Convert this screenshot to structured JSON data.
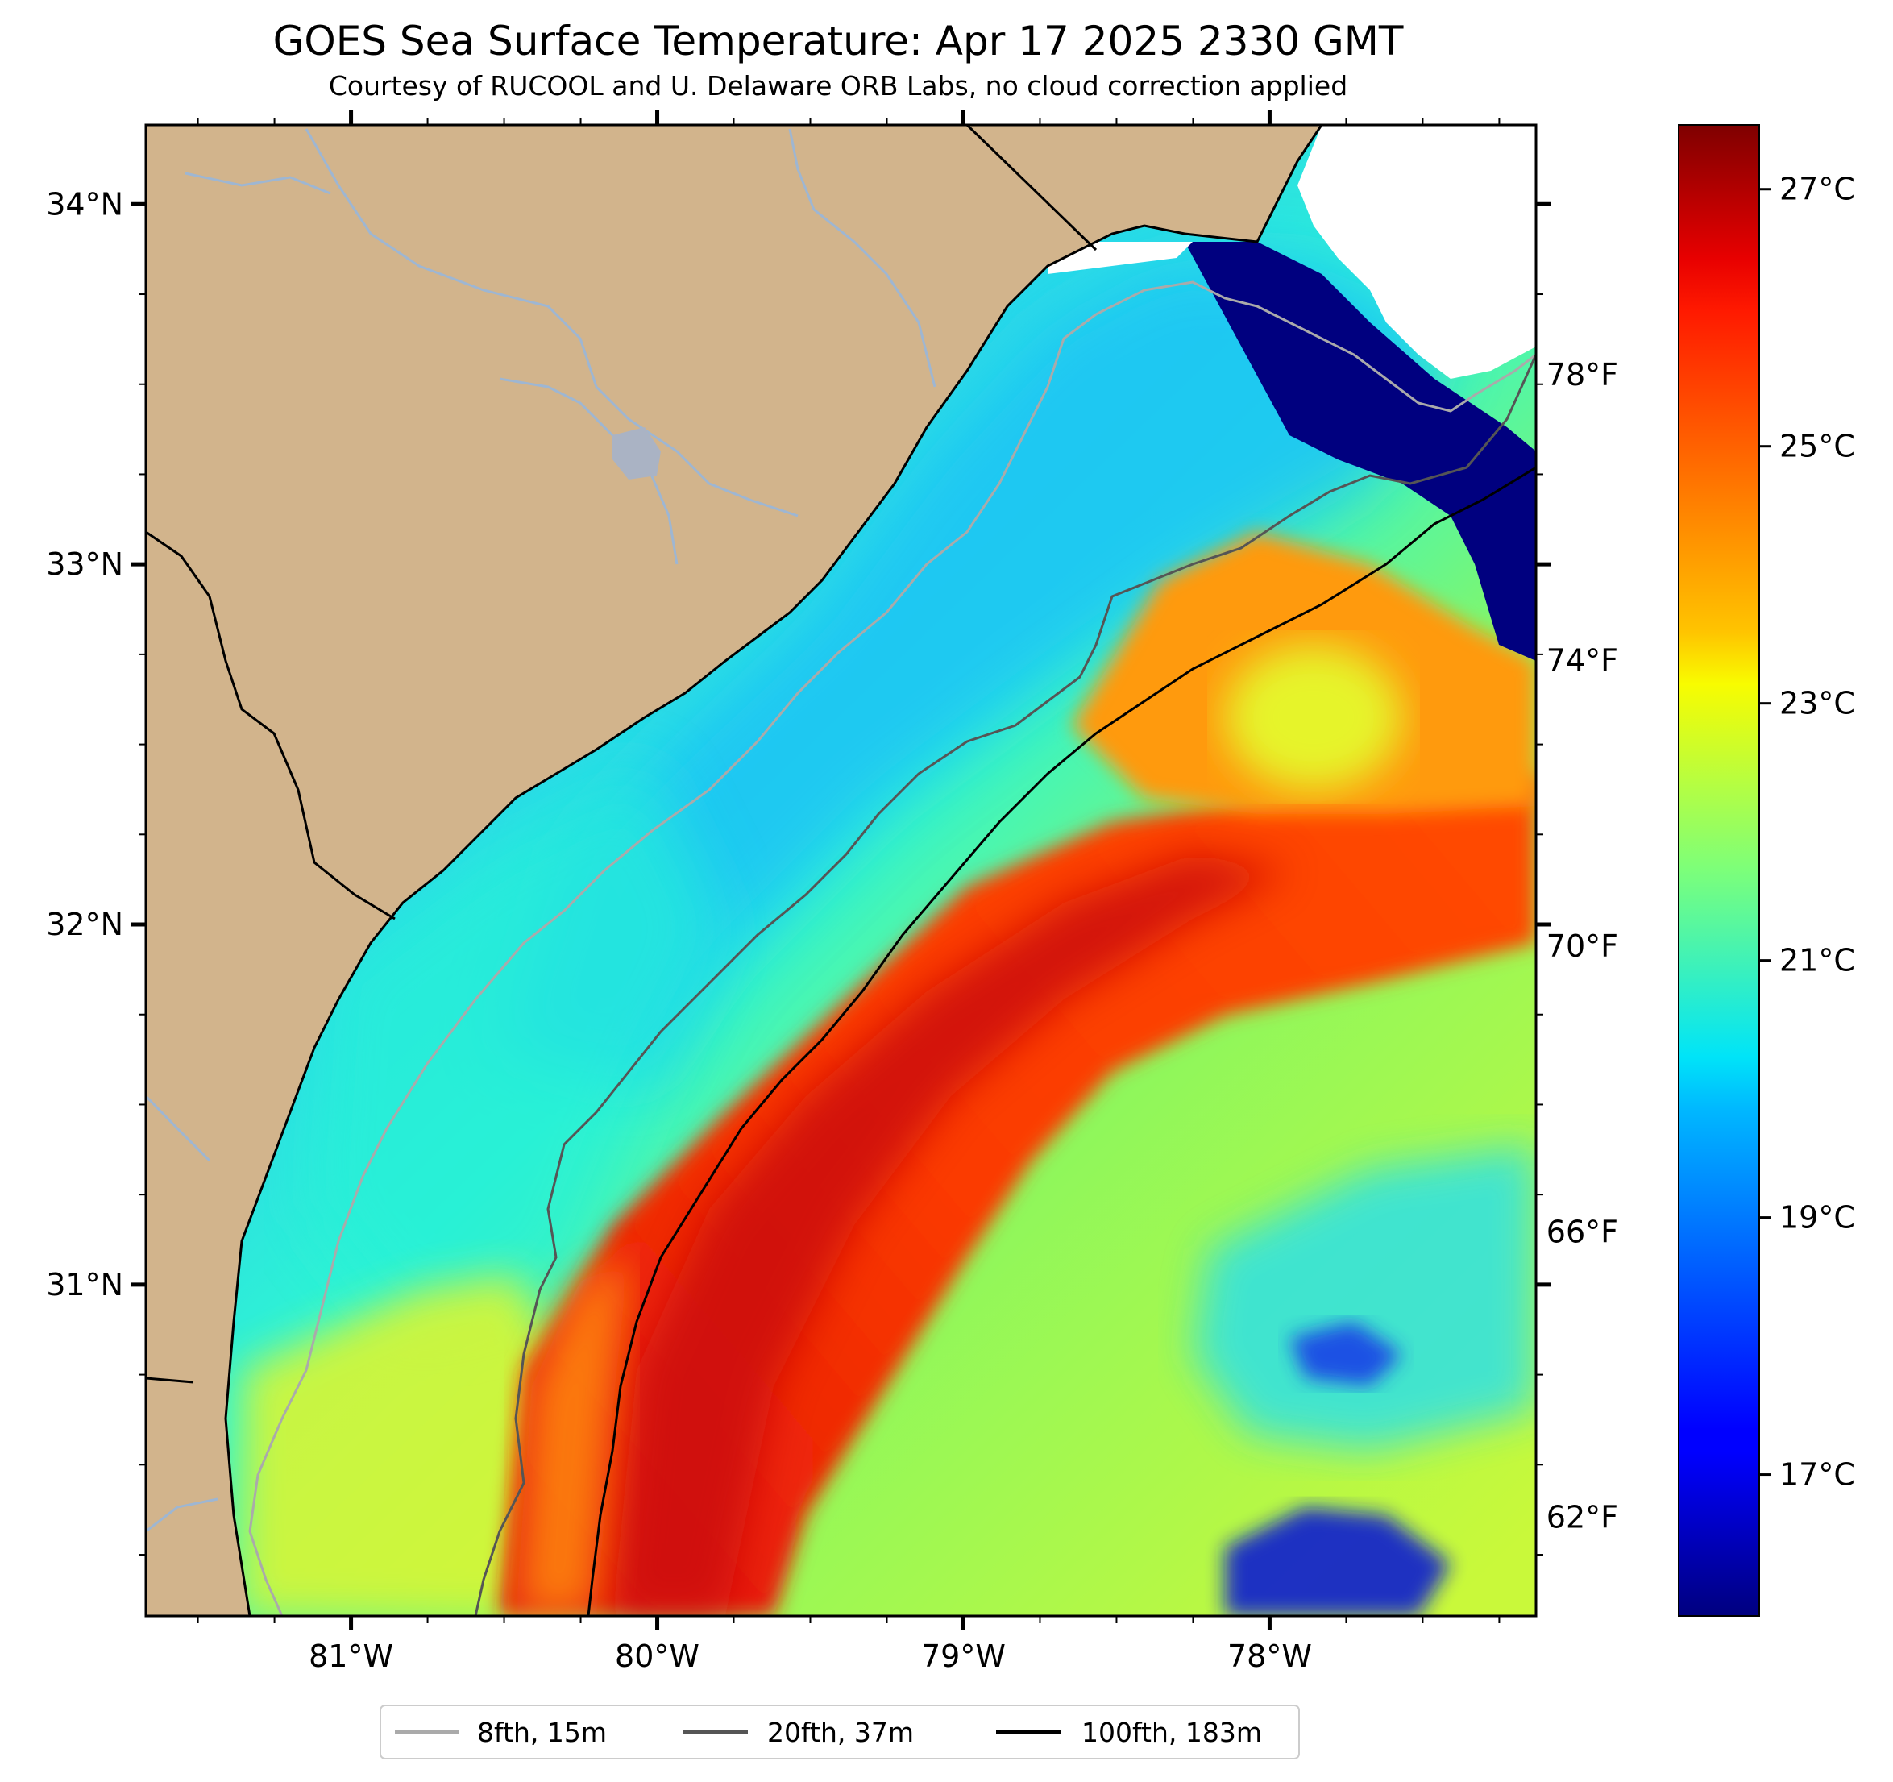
{
  "title": "GOES Sea Surface Temperature: Apr 17 2025 2330 GMT",
  "subtitle": "Courtesy of RUCOOL and U. Delaware ORB Labs, no cloud correction applied",
  "map": {
    "lon_range": [
      -81.67,
      -77.13
    ],
    "lat_range": [
      30.08,
      34.22
    ],
    "land_color": "#d2b48c",
    "river_color": "#9eb6d2",
    "lat_ticks": [
      {
        "value": 34,
        "label": "34°N"
      },
      {
        "value": 33,
        "label": "33°N"
      },
      {
        "value": 32,
        "label": "32°N"
      },
      {
        "value": 31,
        "label": "31°N"
      }
    ],
    "lon_ticks": [
      {
        "value": -81,
        "label": "81°W"
      },
      {
        "value": -80,
        "label": "80°W"
      },
      {
        "value": -79,
        "label": "79°W"
      },
      {
        "value": -78,
        "label": "78°W"
      }
    ]
  },
  "colorbar": {
    "colormap": "jet",
    "celsius_range": [
      15.9,
      27.5
    ],
    "celsius_ticks": [
      {
        "value": 27,
        "label": "27°C"
      },
      {
        "value": 25,
        "label": "25°C"
      },
      {
        "value": 23,
        "label": "23°C"
      },
      {
        "value": 21,
        "label": "21°C"
      },
      {
        "value": 19,
        "label": "19°C"
      },
      {
        "value": 17,
        "label": "17°C"
      }
    ],
    "fahrenheit_ticks": [
      {
        "value": 78,
        "label": "78°F"
      },
      {
        "value": 74,
        "label": "74°F"
      },
      {
        "value": 70,
        "label": "70°F"
      },
      {
        "value": 66,
        "label": "66°F"
      },
      {
        "value": 62,
        "label": "62°F"
      }
    ]
  },
  "legend": {
    "placement": "bottom-center",
    "entries": [
      {
        "label": "8fth, 15m",
        "color": "#aaaaaa"
      },
      {
        "label": "20fth, 37m",
        "color": "#555555"
      },
      {
        "label": "100fth, 183m",
        "color": "#000000"
      }
    ]
  }
}
